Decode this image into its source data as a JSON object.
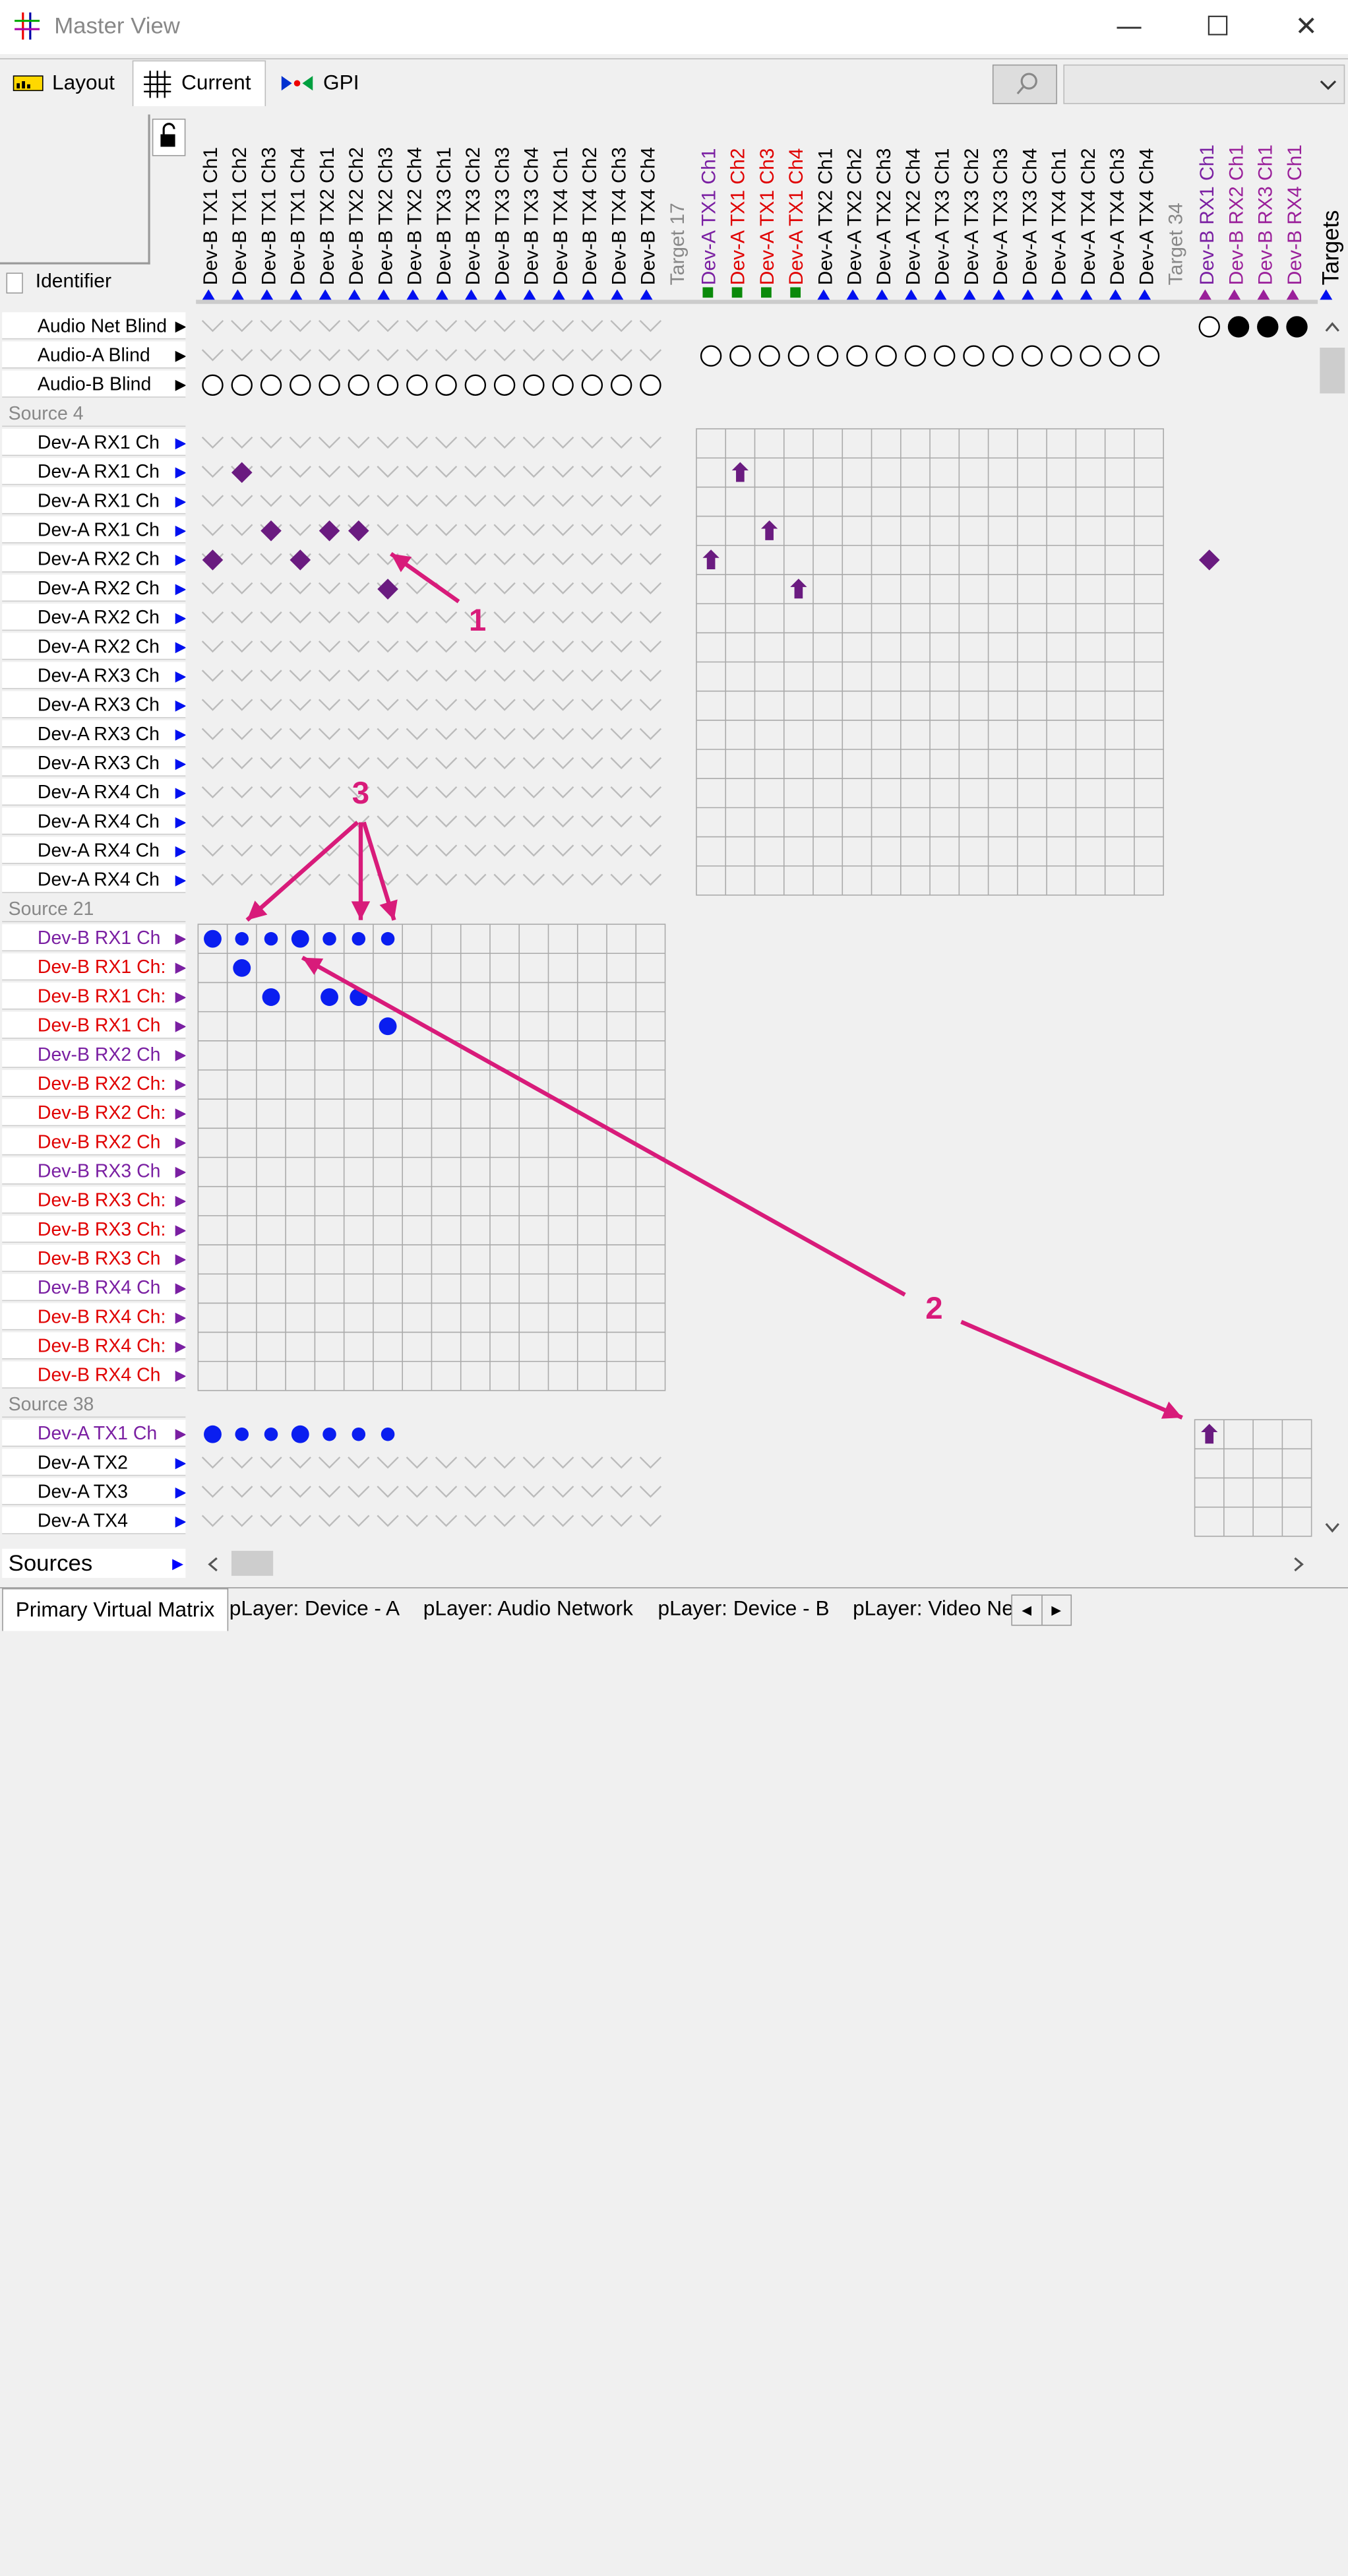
{
  "window": {
    "title": "Master View",
    "minimize": "—",
    "maximize": "☐",
    "close": "✕"
  },
  "toolbar": {
    "tabs": [
      {
        "label": "Layout",
        "icon": "layout-icon"
      },
      {
        "label": "Current",
        "icon": "grid-icon"
      },
      {
        "label": "GPI",
        "icon": "gpi-icon"
      }
    ],
    "search_icon": "search-icon",
    "combo_value": ""
  },
  "identifier": {
    "label": "Identifier",
    "lock_icon": "lock-icon"
  },
  "columns": [
    {
      "label": "Dev-B TX1 Ch1",
      "color": "#000000"
    },
    {
      "label": "Dev-B TX1 Ch2",
      "color": "#000000"
    },
    {
      "label": "Dev-B TX1 Ch3",
      "color": "#000000"
    },
    {
      "label": "Dev-B TX1 Ch4",
      "color": "#000000"
    },
    {
      "label": "Dev-B TX2 Ch1",
      "color": "#000000"
    },
    {
      "label": "Dev-B TX2 Ch2",
      "color": "#000000"
    },
    {
      "label": "Dev-B TX2 Ch3",
      "color": "#000000"
    },
    {
      "label": "Dev-B TX2 Ch4",
      "color": "#000000"
    },
    {
      "label": "Dev-B TX3 Ch1",
      "color": "#000000"
    },
    {
      "label": "Dev-B TX3 Ch2",
      "color": "#000000"
    },
    {
      "label": "Dev-B TX3 Ch3",
      "color": "#000000"
    },
    {
      "label": "Dev-B TX3 Ch4",
      "color": "#000000"
    },
    {
      "label": "Dev-B TX4 Ch1",
      "color": "#000000"
    },
    {
      "label": "Dev-B TX4 Ch2",
      "color": "#000000"
    },
    {
      "label": "Dev-B TX4 Ch3",
      "color": "#000000"
    },
    {
      "label": "Dev-B TX4 Ch4",
      "color": "#000000"
    },
    {
      "label": "Target 17",
      "color": "#888888"
    },
    {
      "label": "Dev-A TX1 Ch1",
      "color": "#7a1fa2"
    },
    {
      "label": "Dev-A TX1 Ch2",
      "color": "#e00000"
    },
    {
      "label": "Dev-A TX1 Ch3",
      "color": "#e00000"
    },
    {
      "label": "Dev-A TX1 Ch4",
      "color": "#e00000"
    },
    {
      "label": "Dev-A TX2 Ch1",
      "color": "#000000"
    },
    {
      "label": "Dev-A TX2 Ch2",
      "color": "#000000"
    },
    {
      "label": "Dev-A TX2 Ch3",
      "color": "#000000"
    },
    {
      "label": "Dev-A TX2 Ch4",
      "color": "#000000"
    },
    {
      "label": "Dev-A TX3 Ch1",
      "color": "#000000"
    },
    {
      "label": "Dev-A TX3 Ch2",
      "color": "#000000"
    },
    {
      "label": "Dev-A TX3 Ch3",
      "color": "#000000"
    },
    {
      "label": "Dev-A TX3 Ch4",
      "color": "#000000"
    },
    {
      "label": "Dev-A TX4 Ch1",
      "color": "#000000"
    },
    {
      "label": "Dev-A TX4 Ch2",
      "color": "#000000"
    },
    {
      "label": "Dev-A TX4 Ch3",
      "color": "#000000"
    },
    {
      "label": "Dev-A TX4 Ch4",
      "color": "#000000"
    },
    {
      "label": "Target 34",
      "color": "#888888"
    },
    {
      "label": "Dev-B RX1 Ch1",
      "color": "#7a1fa2"
    },
    {
      "label": "Dev-B RX2 Ch1",
      "color": "#9a1f9a"
    },
    {
      "label": "Dev-B RX3 Ch1",
      "color": "#9a1f9a"
    },
    {
      "label": "Dev-B RX4 Ch1",
      "color": "#9a1f9a"
    },
    {
      "label": "Targets",
      "color": "#000000"
    }
  ],
  "rows": [
    {
      "label": "Audio Net Blind",
      "color": "#000000"
    },
    {
      "label": "Audio-A Blind",
      "color": "#000000"
    },
    {
      "label": "Audio-B Blind",
      "color": "#000000"
    },
    {
      "label": "Source 4",
      "color": "#888888"
    },
    {
      "label": "Dev-A RX1 Ch",
      "color": "#000000"
    },
    {
      "label": "Dev-A RX1 Ch",
      "color": "#000000"
    },
    {
      "label": "Dev-A RX1 Ch",
      "color": "#000000"
    },
    {
      "label": "Dev-A RX1 Ch",
      "color": "#000000"
    },
    {
      "label": "Dev-A RX2 Ch",
      "color": "#000000"
    },
    {
      "label": "Dev-A RX2 Ch",
      "color": "#000000"
    },
    {
      "label": "Dev-A RX2 Ch",
      "color": "#000000"
    },
    {
      "label": "Dev-A RX2 Ch",
      "color": "#000000"
    },
    {
      "label": "Dev-A RX3 Ch",
      "color": "#000000"
    },
    {
      "label": "Dev-A RX3 Ch",
      "color": "#000000"
    },
    {
      "label": "Dev-A RX3 Ch",
      "color": "#000000"
    },
    {
      "label": "Dev-A RX3 Ch",
      "color": "#000000"
    },
    {
      "label": "Dev-A RX4 Ch",
      "color": "#000000"
    },
    {
      "label": "Dev-A RX4 Ch",
      "color": "#000000"
    },
    {
      "label": "Dev-A RX4 Ch",
      "color": "#000000"
    },
    {
      "label": "Dev-A RX4 Ch",
      "color": "#000000"
    },
    {
      "label": "Source 21",
      "color": "#888888"
    },
    {
      "label": "Dev-B RX1 Ch",
      "color": "#7a1fa2"
    },
    {
      "label": "Dev-B RX1 Ch:",
      "color": "#e00000"
    },
    {
      "label": "Dev-B RX1 Ch:",
      "color": "#e00000"
    },
    {
      "label": "Dev-B RX1 Ch",
      "color": "#e00000"
    },
    {
      "label": "Dev-B RX2 Ch",
      "color": "#7a1fa2"
    },
    {
      "label": "Dev-B RX2 Ch:",
      "color": "#e00000"
    },
    {
      "label": "Dev-B RX2 Ch:",
      "color": "#e00000"
    },
    {
      "label": "Dev-B RX2 Ch",
      "color": "#e00000"
    },
    {
      "label": "Dev-B RX3 Ch",
      "color": "#7a1fa2"
    },
    {
      "label": "Dev-B RX3 Ch:",
      "color": "#e00000"
    },
    {
      "label": "Dev-B RX3 Ch:",
      "color": "#e00000"
    },
    {
      "label": "Dev-B RX3 Ch",
      "color": "#e00000"
    },
    {
      "label": "Dev-B RX4 Ch",
      "color": "#7a1fa2"
    },
    {
      "label": "Dev-B RX4 Ch:",
      "color": "#e00000"
    },
    {
      "label": "Dev-B RX4 Ch:",
      "color": "#e00000"
    },
    {
      "label": "Dev-B RX4 Ch",
      "color": "#e00000"
    },
    {
      "label": "Source 38",
      "color": "#888888"
    },
    {
      "label": "Dev-A TX1 Ch",
      "color": "#7a1fa2"
    },
    {
      "label": "Dev-A TX2",
      "color": "#000000"
    },
    {
      "label": "Dev-A TX3",
      "color": "#000000"
    },
    {
      "label": "Dev-A TX4",
      "color": "#000000"
    }
  ],
  "sources_label": "Sources",
  "annotations": [
    "1",
    "2",
    "3"
  ],
  "bottom_tabs": [
    "Primary Virtual Matrix",
    "pLayer: Device - A",
    "pLayer: Audio Network",
    "pLayer: Device - B",
    "pLayer: Video Ne"
  ],
  "colors": {
    "diamond": "#6a1b80",
    "dot": "#0a1ef0",
    "annotation": "#d81b7a",
    "grid": "#aaaaaa"
  }
}
